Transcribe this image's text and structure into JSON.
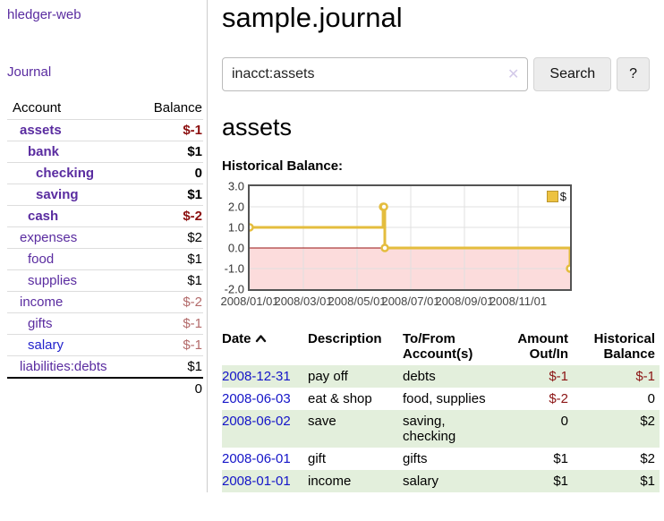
{
  "sidebar": {
    "app_title": "hledger-web",
    "journal_link": "Journal",
    "accounts_table": {
      "header": {
        "account": "Account",
        "balance": "Balance"
      },
      "rows": [
        {
          "account": "assets",
          "balance": "$-1"
        },
        {
          "account": "bank",
          "balance": "$1"
        },
        {
          "account": "checking",
          "balance": "0"
        },
        {
          "account": "saving",
          "balance": "$1"
        },
        {
          "account": "cash",
          "balance": "$-2"
        },
        {
          "account": "expenses",
          "balance": "$2"
        },
        {
          "account": "food",
          "balance": "$1"
        },
        {
          "account": "supplies",
          "balance": "$1"
        },
        {
          "account": "income",
          "balance": "$-2"
        },
        {
          "account": "gifts",
          "balance": "$-1"
        },
        {
          "account": "salary",
          "balance": "$-1"
        },
        {
          "account": "liabilities:debts",
          "balance": "$1"
        }
      ],
      "total": "0"
    }
  },
  "main": {
    "page_title": "sample.journal",
    "search": {
      "value": "inacct:assets",
      "clear_label": "✕",
      "search_button": "Search",
      "help_button": "?"
    },
    "account_heading": "assets",
    "section_label": "Historical Balance:"
  },
  "chart_data": {
    "type": "line",
    "title": "Historical Balance of assets",
    "step": true,
    "series": [
      {
        "name": "$",
        "points": [
          [
            "2008-01-01",
            1
          ],
          [
            "2008-06-01",
            2
          ],
          [
            "2008-06-02",
            2
          ],
          [
            "2008-06-03",
            0
          ],
          [
            "2008-12-31",
            -1
          ]
        ]
      }
    ],
    "x_range": [
      "2008-01-01",
      "2008-12-31"
    ],
    "ylim": [
      -2,
      3
    ],
    "y_ticks": [
      "3.0",
      "2.0",
      "1.0",
      "0.0",
      "-1.0",
      "-2.0"
    ],
    "x_ticks": [
      "2008/01/01",
      "2008/03/01",
      "2008/05/01",
      "2008/07/01",
      "2008/09/01",
      "2008/11/01"
    ],
    "legend": {
      "label": "$",
      "position": "top-right"
    },
    "grid": true,
    "colors": {
      "line": "#e4bd3e",
      "negative_region": "#fcdcdc",
      "zero_line": "#991111",
      "gridline": "#e0e0e0"
    }
  },
  "register": {
    "headers": {
      "date": "Date",
      "description": "Description",
      "accounts": "To/From Account(s)",
      "amount": "Amount Out/In",
      "balance": "Historical Balance"
    },
    "rows": [
      {
        "date": "2008-12-31",
        "description": "pay off",
        "accounts": [
          "debts"
        ],
        "amount": "$-1",
        "balance": "$-1"
      },
      {
        "date": "2008-06-03",
        "description": "eat & shop",
        "accounts": [
          "food, supplies"
        ],
        "amount": "$-2",
        "balance": "0"
      },
      {
        "date": "2008-06-02",
        "description": "save",
        "accounts": [
          "saving,",
          "checking"
        ],
        "amount": "0",
        "balance": "$2"
      },
      {
        "date": "2008-06-01",
        "description": "gift",
        "accounts": [
          "gifts"
        ],
        "amount": "$1",
        "balance": "$2"
      },
      {
        "date": "2008-01-01",
        "description": "income",
        "accounts": [
          "salary"
        ],
        "amount": "$1",
        "balance": "$1"
      }
    ]
  }
}
